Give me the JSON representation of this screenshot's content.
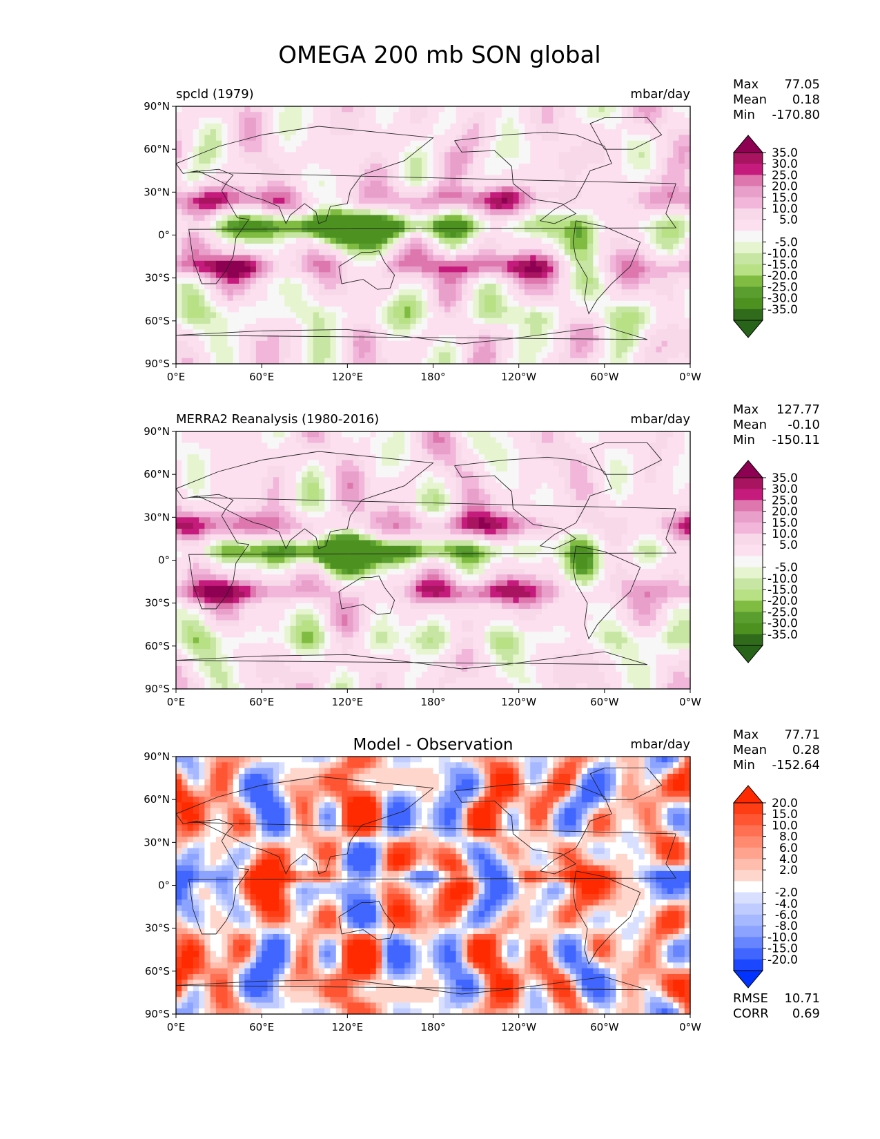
{
  "title": "OMEGA 200 mb SON global",
  "x_ticks": [
    "0°E",
    "60°E",
    "120°E",
    "180°",
    "120°W",
    "60°W",
    "0°W"
  ],
  "y_ticks": [
    "90°N",
    "60°N",
    "30°N",
    "0°",
    "30°S",
    "60°S",
    "90°S"
  ],
  "chart_data": [
    {
      "type": "heatmap",
      "left_title": "spcld (1979)",
      "units": "mbar/day",
      "xlim": [
        0,
        360
      ],
      "ylim": [
        -90,
        90
      ],
      "stats": [
        {
          "label": "Max",
          "value": "77.05"
        },
        {
          "label": "Mean",
          "value": "0.18"
        },
        {
          "label": "Min",
          "value": "-170.80"
        }
      ],
      "colorbar": {
        "extend": "both",
        "levels": [
          "35.0",
          "30.0",
          "25.0",
          "20.0",
          "15.0",
          "10.0",
          "5.0",
          "-5.0",
          "-10.0",
          "-15.0",
          "-20.0",
          "-25.0",
          "-30.0",
          "-35.0"
        ],
        "colors": [
          "#8e0152",
          "#a8145f",
          "#c51b7d",
          "#de77ae",
          "#e8a0cb",
          "#f1b6da",
          "#f7d9ea",
          "#fde0ef",
          "#f7f7f7",
          "#e6f5d0",
          "#c7e6a3",
          "#b8e186",
          "#7fbc41",
          "#5a9e30",
          "#4d9221",
          "#2f6b1a",
          "#276419"
        ]
      }
    },
    {
      "type": "heatmap",
      "left_title": "MERRA2 Reanalysis (1980-2016)",
      "units": "mbar/day",
      "xlim": [
        0,
        360
      ],
      "ylim": [
        -90,
        90
      ],
      "stats": [
        {
          "label": "Max",
          "value": "127.77"
        },
        {
          "label": "Mean",
          "value": "-0.10"
        },
        {
          "label": "Min",
          "value": "-150.11"
        }
      ],
      "colorbar": {
        "extend": "both",
        "levels": [
          "35.0",
          "30.0",
          "25.0",
          "20.0",
          "15.0",
          "10.0",
          "5.0",
          "-5.0",
          "-10.0",
          "-15.0",
          "-20.0",
          "-25.0",
          "-30.0",
          "-35.0"
        ],
        "colors": [
          "#8e0152",
          "#a8145f",
          "#c51b7d",
          "#de77ae",
          "#e8a0cb",
          "#f1b6da",
          "#f7d9ea",
          "#fde0ef",
          "#f7f7f7",
          "#e6f5d0",
          "#c7e6a3",
          "#b8e186",
          "#7fbc41",
          "#5a9e30",
          "#4d9221",
          "#2f6b1a",
          "#276419"
        ]
      }
    },
    {
      "type": "heatmap",
      "center_title": "Model - Observation",
      "units": "mbar/day",
      "xlim": [
        0,
        360
      ],
      "ylim": [
        -90,
        90
      ],
      "stats": [
        {
          "label": "Max",
          "value": "77.71"
        },
        {
          "label": "Mean",
          "value": "0.28"
        },
        {
          "label": "Min",
          "value": "-152.64"
        }
      ],
      "extra_stats": [
        {
          "label": "RMSE",
          "value": "10.71"
        },
        {
          "label": "CORR",
          "value": "0.69"
        }
      ],
      "colorbar": {
        "extend": "both",
        "levels": [
          "20.0",
          "15.0",
          "10.0",
          "8.0",
          "6.0",
          "4.0",
          "2.0",
          "-2.0",
          "-4.0",
          "-6.0",
          "-8.0",
          "-10.0",
          "-15.0",
          "-20.0"
        ],
        "colors": [
          "#ff2a00",
          "#ff3d14",
          "#ff5533",
          "#ff7052",
          "#ff8a70",
          "#ffa38f",
          "#ffbdad",
          "#ffd6cc",
          "#ffffff",
          "#d9e0ff",
          "#c0ccff",
          "#a6b8ff",
          "#8ca3ff",
          "#6685ff",
          "#4066ff",
          "#1a47ff",
          "#0033ff"
        ]
      }
    }
  ]
}
